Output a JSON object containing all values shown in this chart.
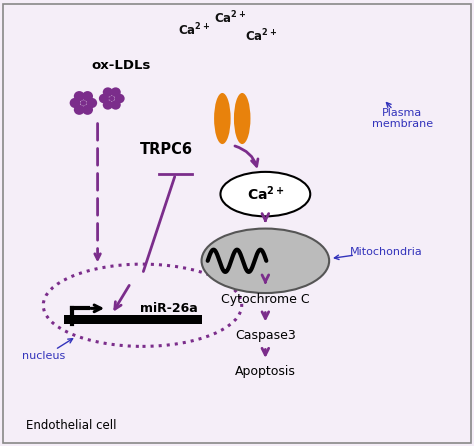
{
  "bg_color": "#f5eef8",
  "purple": "#7b2d8b",
  "blue": "#3333bb",
  "orange": "#e8820c",
  "membrane_color": "#6666aa",
  "labels": {
    "ox_ldls": "ox-LDLs",
    "trpc6": "TRPC6",
    "mir26a": "miR-26a",
    "nucleus": "nucleus",
    "plasma_membrane": "Plasma\nmembrane",
    "mitochondria": "Mitochondria",
    "cytochrome": "Cytochrome C",
    "caspase3": "Caspase3",
    "apoptosis": "Apoptosis",
    "endothelial": "Endothelial cell"
  },
  "xlim": [
    0,
    10
  ],
  "ylim": [
    0,
    10
  ]
}
